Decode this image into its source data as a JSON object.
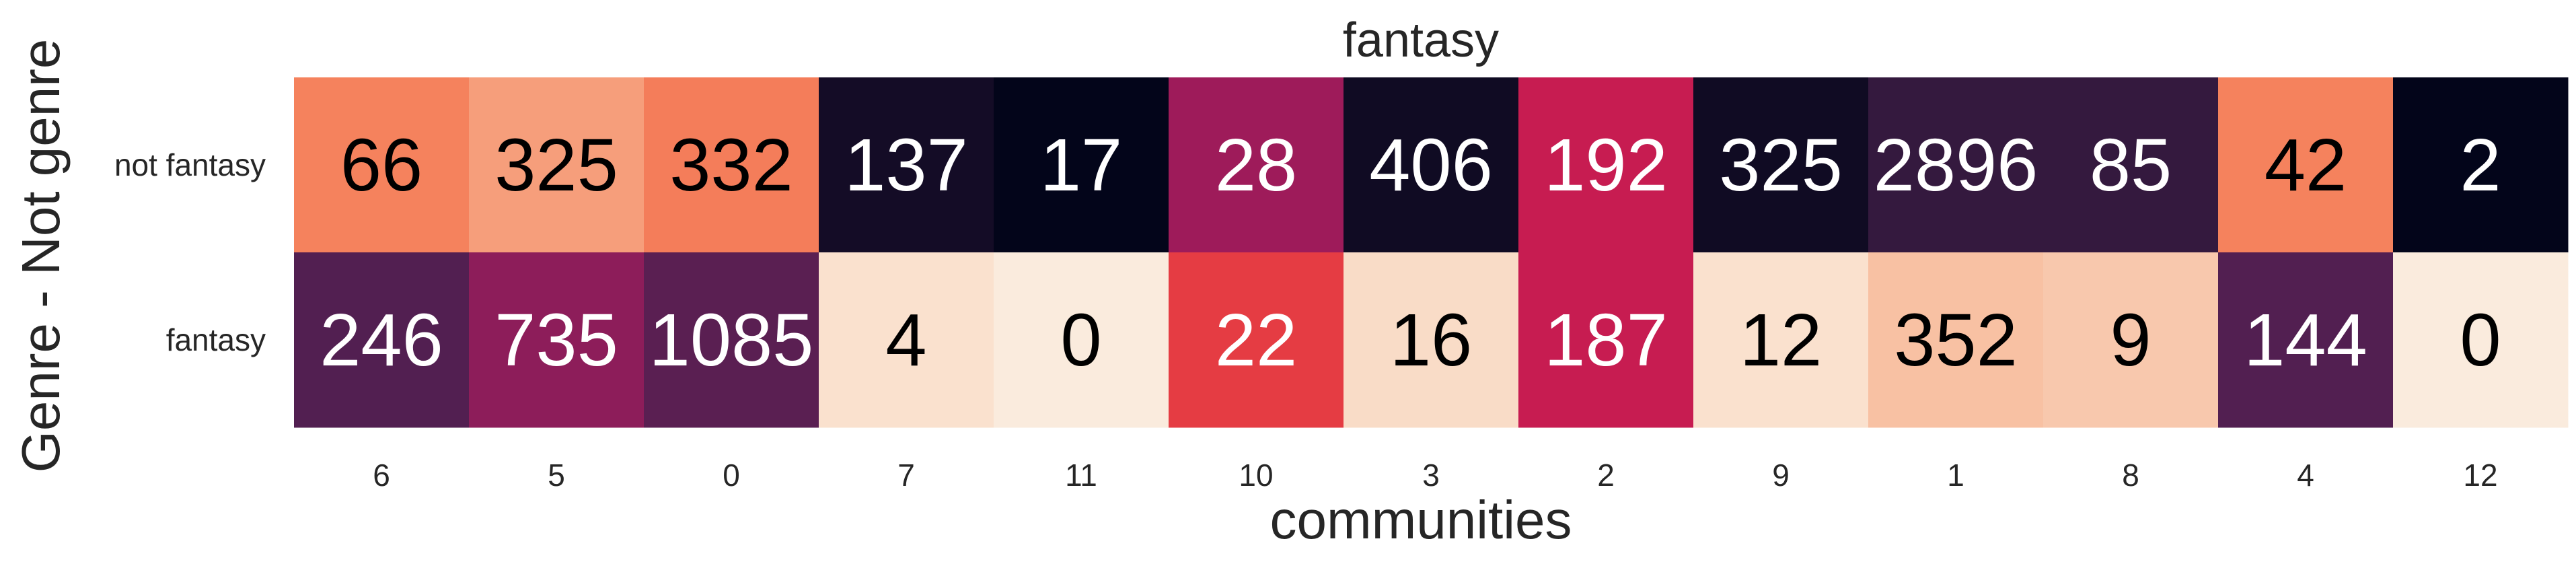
{
  "chart_data": {
    "type": "heatmap",
    "title": "fantasy",
    "xlabel": "communities",
    "ylabel": "Genre - Not genre",
    "x_categories": [
      "6",
      "5",
      "0",
      "7",
      "11",
      "10",
      "3",
      "2",
      "9",
      "1",
      "8",
      "4",
      "12"
    ],
    "y_categories": [
      "not fantasy",
      "fantasy"
    ],
    "values": [
      [
        66,
        325,
        332,
        137,
        17,
        28,
        406,
        192,
        325,
        2896,
        85,
        42,
        2
      ],
      [
        246,
        735,
        1085,
        4,
        0,
        22,
        16,
        187,
        12,
        352,
        9,
        144,
        0
      ]
    ],
    "color_levels": [
      [
        0.72,
        0.78,
        0.71,
        0.04,
        0.0,
        0.38,
        0.03,
        0.48,
        0.03,
        0.12,
        0.12,
        0.72,
        0.0
      ],
      [
        0.2,
        0.34,
        0.22,
        0.96,
        1.0,
        0.58,
        0.94,
        0.48,
        0.96,
        0.86,
        0.88,
        0.2,
        1.0
      ]
    ],
    "colormap": [
      "#03051a",
      "#2a1636",
      "#4a1f4f",
      "#701f57",
      "#971c5b",
      "#bd1655",
      "#df2c46",
      "#f0573f",
      "#f58660",
      "#f7b08e",
      "#f9d4bc",
      "#faebdd"
    ],
    "grid": false,
    "legend": "none"
  }
}
